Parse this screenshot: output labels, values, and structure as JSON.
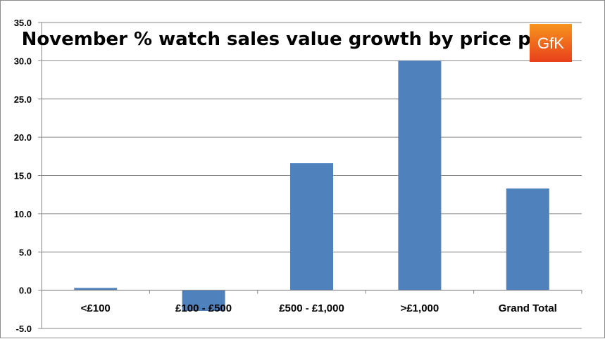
{
  "chart_data": {
    "type": "bar",
    "title": "November % watch sales value growth by price point",
    "categories": [
      "<£100",
      "£100 - £500",
      "£500 - £1,000",
      ">£1,000",
      "Grand Total"
    ],
    "values": [
      0.3,
      -2.7,
      16.6,
      30.0,
      13.3
    ],
    "ylim": [
      -5,
      35
    ],
    "yticks": [
      "35.0",
      "30.0",
      "25.0",
      "20.0",
      "15.0",
      "10.0",
      "5.0",
      "0.0",
      "-5.0"
    ],
    "grid": true,
    "legend": "none",
    "bar_color": "#4f81bd",
    "grid_color": "#868686"
  },
  "logo": {
    "text": "GfK",
    "color_top": "#f7941d",
    "color_bottom": "#e8401c"
  }
}
